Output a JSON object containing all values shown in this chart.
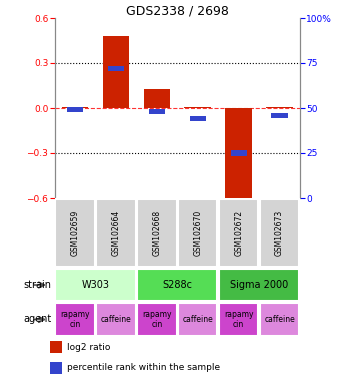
{
  "title": "GDS2338 / 2698",
  "samples": [
    "GSM102659",
    "GSM102664",
    "GSM102668",
    "GSM102670",
    "GSM102672",
    "GSM102673"
  ],
  "log2_ratio": [
    0.01,
    0.48,
    0.13,
    0.01,
    -0.63,
    0.01
  ],
  "percentile_rank": [
    49,
    72,
    48,
    44,
    25,
    46
  ],
  "ylim_left": [
    -0.6,
    0.6
  ],
  "ylim_right": [
    0,
    100
  ],
  "yticks_left": [
    -0.6,
    -0.3,
    0.0,
    0.3,
    0.6
  ],
  "yticks_right": [
    0,
    25,
    50,
    75,
    100
  ],
  "dotted_lines": [
    0.3,
    -0.3
  ],
  "bar_color": "#cc2200",
  "percentile_color": "#3344cc",
  "gsm_bg": "#d4d4d4",
  "strain_groups": [
    {
      "label": "W303",
      "start": 0,
      "end": 2,
      "color": "#ccffcc"
    },
    {
      "label": "S288c",
      "start": 2,
      "end": 4,
      "color": "#55dd55"
    },
    {
      "label": "Sigma 2000",
      "start": 4,
      "end": 6,
      "color": "#44bb44"
    }
  ],
  "agent_groups": [
    {
      "label": "rapamycin",
      "start": 0,
      "end": 1,
      "color": "#cc44cc"
    },
    {
      "label": "caffeine",
      "start": 1,
      "end": 2,
      "color": "#dd88dd"
    },
    {
      "label": "rapamycin",
      "start": 2,
      "end": 3,
      "color": "#cc44cc"
    },
    {
      "label": "caffeine",
      "start": 3,
      "end": 4,
      "color": "#dd88dd"
    },
    {
      "label": "rapamycin",
      "start": 4,
      "end": 5,
      "color": "#cc44cc"
    },
    {
      "label": "caffeine",
      "start": 5,
      "end": 6,
      "color": "#dd88dd"
    }
  ],
  "legend_items": [
    {
      "label": "log2 ratio",
      "color": "#cc2200"
    },
    {
      "label": "percentile rank within the sample",
      "color": "#3344cc"
    }
  ],
  "strain_label": "strain",
  "agent_label": "agent"
}
